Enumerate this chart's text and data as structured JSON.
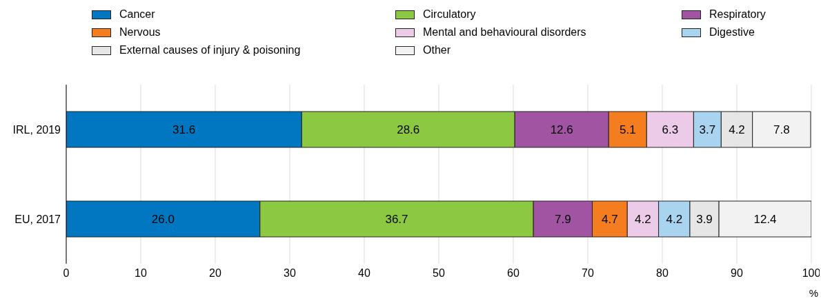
{
  "chart_data": {
    "type": "bar",
    "orientation": "horizontal",
    "stacked": true,
    "xlabel": "%",
    "categories": [
      "IRL, 2019",
      "EU, 2017"
    ],
    "series": [
      {
        "name": "Cancer",
        "color": "#0077c0",
        "values": [
          31.6,
          26.0
        ],
        "value_labels": [
          "31.6",
          "26.0"
        ]
      },
      {
        "name": "Circulatory",
        "color": "#8cc841",
        "values": [
          28.6,
          36.7
        ],
        "value_labels": [
          "28.6",
          "36.7"
        ]
      },
      {
        "name": "Respiratory",
        "color": "#a154a1",
        "values": [
          12.6,
          7.9
        ],
        "value_labels": [
          "12.6",
          "7.9"
        ]
      },
      {
        "name": "Nervous",
        "color": "#f47d20",
        "values": [
          5.1,
          4.7
        ],
        "value_labels": [
          "5.1",
          "4.7"
        ]
      },
      {
        "name": "Mental and behavioural disorders",
        "color": "#eccbe8",
        "values": [
          6.3,
          4.2
        ],
        "value_labels": [
          "6.3",
          "4.2"
        ]
      },
      {
        "name": "Digestive",
        "color": "#a8d4f0",
        "values": [
          3.7,
          4.2
        ],
        "value_labels": [
          "3.7",
          "4.2"
        ]
      },
      {
        "name": "External causes of injury & poisoning",
        "color": "#e6e6e6",
        "values": [
          4.2,
          3.9
        ],
        "value_labels": [
          "4.2",
          "3.9"
        ]
      },
      {
        "name": "Other",
        "color": "#f2f2f2",
        "values": [
          7.8,
          12.4
        ],
        "value_labels": [
          "7.8",
          "12.4"
        ]
      }
    ],
    "xlim": [
      0,
      100
    ],
    "xticks": [
      0,
      10,
      20,
      30,
      40,
      50,
      60,
      70,
      80,
      90,
      100
    ],
    "grid": "x",
    "legend": "top"
  }
}
